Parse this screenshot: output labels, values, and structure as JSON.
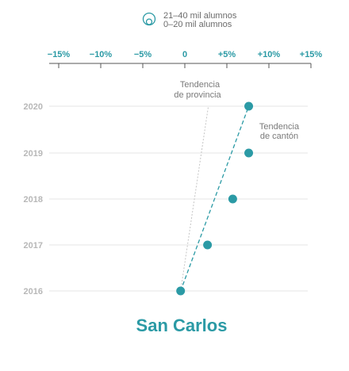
{
  "legend": {
    "items": [
      "21–40 mil alumnos",
      "0–20 mil alumnos"
    ]
  },
  "chart_data": {
    "type": "scatter",
    "title": "San Carlos",
    "x_ticks": [
      "−15%",
      "−10%",
      "−5%",
      "0",
      "+5%",
      "+10%",
      "+15%"
    ],
    "x_tick_values": [
      -15,
      -10,
      -5,
      0,
      5,
      10,
      15
    ],
    "xlim": [
      -15,
      15
    ],
    "years": [
      "2020",
      "2019",
      "2018",
      "2017",
      "2016"
    ],
    "points": [
      {
        "year": "2016",
        "x": -0.5
      },
      {
        "year": "2017",
        "x": 2.7
      },
      {
        "year": "2018",
        "x": 5.7
      },
      {
        "year": "2019",
        "x": 7.6
      },
      {
        "year": "2020",
        "x": 7.6
      }
    ],
    "canton_trend": {
      "label": [
        "Tendencia",
        "de cantón"
      ],
      "from": {
        "year": "2016",
        "x": -0.5
      },
      "to": {
        "year": "2020",
        "x": 7.6
      }
    },
    "province_trend": {
      "label": [
        "Tendencia",
        "de provincia"
      ],
      "from": {
        "year": "2016",
        "x": -0.5
      },
      "to": {
        "year": "2020",
        "x": 2.8
      }
    },
    "colors": {
      "accent": "#2b9aa5",
      "year_label": "#b8b8b8",
      "grid": "#e6e6e6",
      "province_trend": "#c4c4c4"
    }
  }
}
